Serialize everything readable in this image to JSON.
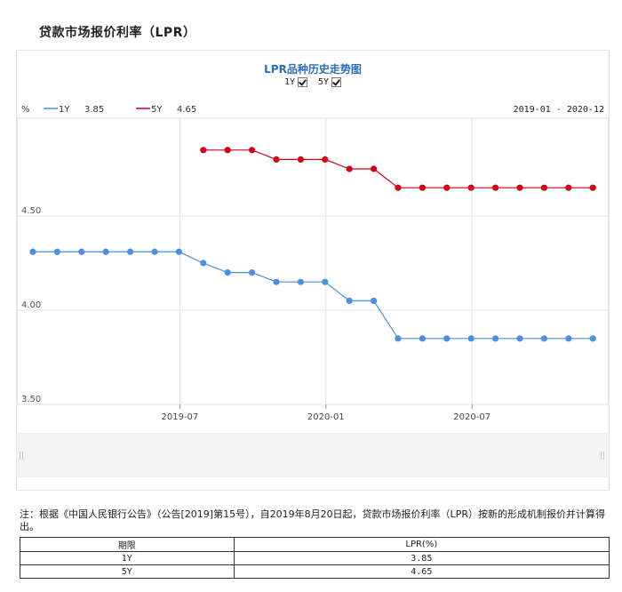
{
  "page": {
    "title": "贷款市场报价利率（LPR）"
  },
  "toggles": [
    {
      "label": "1Y",
      "checked": true
    },
    {
      "label": "5Y",
      "checked": true
    }
  ],
  "legend": {
    "unit": "%",
    "items": [
      {
        "label": "1Y",
        "value": "3.85",
        "color": "#4a90e2"
      },
      {
        "label": "5Y",
        "value": "4.65",
        "color": "#d0021b"
      }
    ],
    "date_range": "2019-01 - 2020-12"
  },
  "chart_data": {
    "type": "line",
    "title": "LPR品种历史走势图",
    "x": [
      "2019-01",
      "2019-02",
      "2019-03",
      "2019-04",
      "2019-05",
      "2019-06",
      "2019-07",
      "2019-08",
      "2019-09",
      "2019-10",
      "2019-11",
      "2019-12",
      "2020-01",
      "2020-02",
      "2020-03",
      "2020-04",
      "2020-05",
      "2020-06",
      "2020-07",
      "2020-08",
      "2020-09",
      "2020-10",
      "2020-11",
      "2020-12"
    ],
    "series": [
      {
        "name": "1Y",
        "color": "#4a90e2",
        "values": [
          4.31,
          4.31,
          4.31,
          4.31,
          4.31,
          4.31,
          4.31,
          4.25,
          4.2,
          4.2,
          4.15,
          4.15,
          4.15,
          4.05,
          4.05,
          3.85,
          3.85,
          3.85,
          3.85,
          3.85,
          3.85,
          3.85,
          3.85,
          3.85
        ]
      },
      {
        "name": "5Y",
        "color": "#d0021b",
        "values": [
          null,
          null,
          null,
          null,
          null,
          null,
          null,
          4.85,
          4.85,
          4.85,
          4.8,
          4.8,
          4.8,
          4.75,
          4.75,
          4.65,
          4.65,
          4.65,
          4.65,
          4.65,
          4.65,
          4.65,
          4.65,
          4.65
        ]
      }
    ],
    "x_ticks": [
      "2019-07",
      "2020-01",
      "2020-07"
    ],
    "y_ticks": [
      "3.50",
      "4.00",
      "4.50"
    ],
    "ylim": [
      3.5,
      5.0
    ],
    "grid": true,
    "legend_position": "top-left"
  },
  "note": "注：根据《中国人民银行公告》（公告[2019]第15号），自2019年8月20日起，贷款市场报价利率（LPR）按新的形成机制报价并计算得出。",
  "table": {
    "headers": [
      "期限",
      "LPR(%)"
    ],
    "rows": [
      [
        "1Y",
        "3.85"
      ],
      [
        "5Y",
        "4.65"
      ]
    ]
  }
}
